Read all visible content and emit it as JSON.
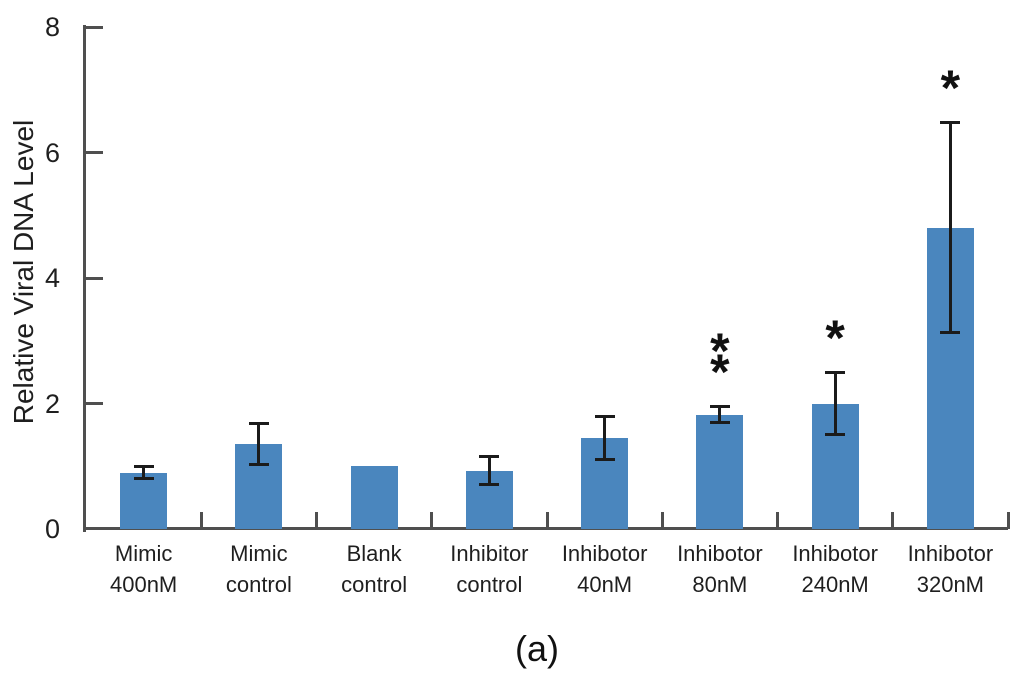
{
  "figure": {
    "caption": "(a)"
  },
  "chart_data": {
    "type": "bar",
    "title": "",
    "xlabel": "",
    "ylabel": "Relative Viral DNA Level",
    "ylim": [
      0,
      8
    ],
    "yticks": [
      0,
      2,
      4,
      6,
      8
    ],
    "grid": false,
    "legend": "none",
    "bar_color": "#4a86be",
    "error_bar_color": "#1b1b1b",
    "categories": [
      "Mimic\n400nM",
      "Mimic\ncontrol",
      "Blank\ncontrol",
      "Inhibitor\ncontrol",
      "Inhibotor\n40nM",
      "Inhibotor\n80nM",
      "Inhibotor\n240nM",
      "Inhibotor\n320nM"
    ],
    "series": [
      {
        "name": "Relative viral DNA level",
        "values": [
          0.9,
          1.35,
          1.0,
          0.93,
          1.45,
          1.82,
          2.0,
          4.8
        ],
        "errors": [
          0.12,
          0.35,
          0,
          0.25,
          0.37,
          0.15,
          0.52,
          1.7
        ],
        "significance": [
          "",
          "",
          "",
          "",
          "",
          "**",
          "*",
          "*"
        ]
      }
    ]
  }
}
